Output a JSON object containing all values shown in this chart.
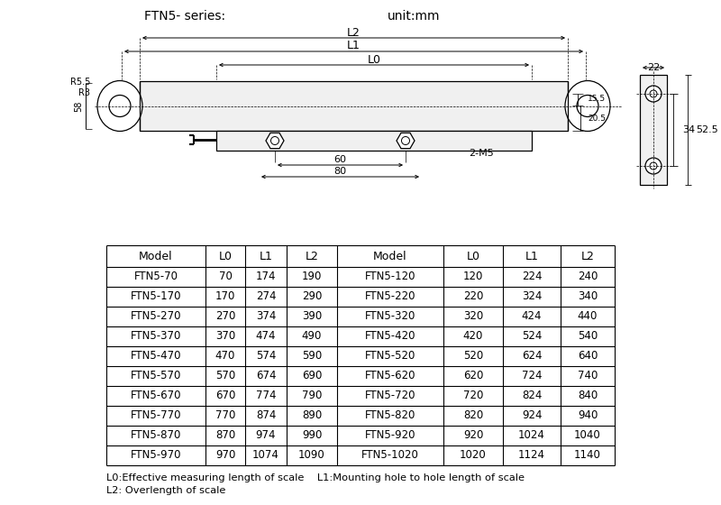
{
  "title_left": "FTN5- series:",
  "title_right": "unit:mm",
  "bg_color": "#ffffff",
  "table_headers": [
    "Model",
    "L0",
    "L1",
    "L2",
    "Model",
    "L0",
    "L1",
    "L2"
  ],
  "table_rows": [
    [
      "FTN5-70",
      "70",
      "174",
      "190",
      "FTN5-120",
      "120",
      "224",
      "240"
    ],
    [
      "FTN5-170",
      "170",
      "274",
      "290",
      "FTN5-220",
      "220",
      "324",
      "340"
    ],
    [
      "FTN5-270",
      "270",
      "374",
      "390",
      "FTN5-320",
      "320",
      "424",
      "440"
    ],
    [
      "FTN5-370",
      "370",
      "474",
      "490",
      "FTN5-420",
      "420",
      "524",
      "540"
    ],
    [
      "FTN5-470",
      "470",
      "574",
      "590",
      "FTN5-520",
      "520",
      "624",
      "640"
    ],
    [
      "FTN5-570",
      "570",
      "674",
      "690",
      "FTN5-620",
      "620",
      "724",
      "740"
    ],
    [
      "FTN5-670",
      "670",
      "774",
      "790",
      "FTN5-720",
      "720",
      "824",
      "840"
    ],
    [
      "FTN5-770",
      "770",
      "874",
      "890",
      "FTN5-820",
      "820",
      "924",
      "940"
    ],
    [
      "FTN5-870",
      "870",
      "974",
      "990",
      "FTN5-920",
      "920",
      "1024",
      "1040"
    ],
    [
      "FTN5-970",
      "970",
      "1074",
      "1090",
      "FTN5-1020",
      "1020",
      "1124",
      "1140"
    ]
  ],
  "footnote1": "L0:Effective measuring length of scale    L1:Mounting hole to hole length of scale",
  "footnote2": "L2: Overlength of scale",
  "text_color": "#000000",
  "line_color": "#000000"
}
